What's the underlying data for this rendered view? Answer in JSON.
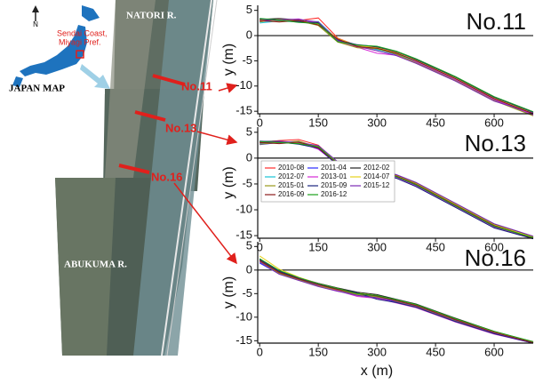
{
  "map": {
    "japan_label": "JAPAN MAP",
    "site_label": [
      "Sendai Coast,",
      "Miyagi Pref."
    ],
    "north": "N",
    "river_top": "NATORI R.",
    "river_bottom": "ABUKUMA R.",
    "lines": [
      "No.11",
      "No.13",
      "No.16"
    ]
  },
  "x_label": "x (m)",
  "chart_data": [
    {
      "type": "line",
      "title": "No.11",
      "y_label": "y (m)",
      "x": [
        0,
        50,
        100,
        150,
        200,
        250,
        300,
        350,
        400,
        500,
        600,
        700
      ],
      "xlim": [
        -5,
        700
      ],
      "ylim": [
        -15.5,
        6
      ],
      "xticks": [
        0,
        150,
        300,
        450,
        600
      ],
      "yticks": [
        5,
        0,
        -5,
        -10,
        -15
      ],
      "series": [
        {
          "color": "#ff2a2a",
          "values": [
            3,
            3.2,
            3,
            3.5,
            -0.5,
            -2,
            -2.5,
            -3.5,
            -5,
            -8.5,
            -12.5,
            -15.5
          ]
        },
        {
          "color": "#2a2aff",
          "values": [
            2.8,
            3,
            2.8,
            2.2,
            -1,
            -2.2,
            -2.7,
            -3.8,
            -5.3,
            -8.8,
            -12.8,
            -15.8
          ]
        },
        {
          "color": "#222222",
          "values": [
            3.2,
            3.4,
            3.1,
            2.6,
            -1.2,
            -2.1,
            -2.3,
            -3.4,
            -4.8,
            -8.3,
            -12.3,
            -15.3
          ]
        },
        {
          "color": "#17c3d6",
          "values": [
            2.5,
            2.9,
            2.7,
            2.8,
            -0.8,
            -1.9,
            -2.8,
            -3.6,
            -5.1,
            -8.6,
            -12.6,
            -15.6
          ]
        },
        {
          "color": "#d62ad6",
          "values": [
            3,
            3.1,
            3.3,
            2.4,
            -1.1,
            -2.3,
            -3.5,
            -3.9,
            -5.2,
            -8.7,
            -12.7,
            -15.7
          ]
        },
        {
          "color": "#e6d21a",
          "values": [
            3.1,
            2.8,
            3,
            2.3,
            -0.6,
            -2,
            -2.4,
            -3.3,
            -4.9,
            -8.4,
            -12.4,
            -15.4
          ]
        },
        {
          "color": "#9a9a1a",
          "values": [
            2.7,
            3.3,
            2.9,
            2,
            -1.3,
            -2.4,
            -2.6,
            -3.7,
            -5.4,
            -8.9,
            -12.9,
            -15.9
          ]
        },
        {
          "color": "#1a237e",
          "values": [
            3.3,
            3,
            2.8,
            2.5,
            -0.9,
            -1.8,
            -2.2,
            -3.2,
            -4.7,
            -8.2,
            -12.2,
            -15.2
          ]
        },
        {
          "color": "#7b2ab3",
          "values": [
            2.9,
            3.2,
            3.2,
            2.7,
            -1,
            -2.1,
            -3,
            -4,
            -5.5,
            -9,
            -13,
            -15.4
          ]
        },
        {
          "color": "#8b1a1a",
          "values": [
            3,
            2.7,
            3,
            2.1,
            -0.7,
            -2.2,
            -2.5,
            -3.5,
            -5,
            -8.5,
            -12.5,
            -15.5
          ]
        },
        {
          "color": "#1aa01a",
          "values": [
            3.4,
            3.1,
            2.6,
            2.4,
            -1.2,
            -1.9,
            -2.1,
            -3.1,
            -4.6,
            -8.1,
            -12.1,
            -15.1
          ]
        }
      ]
    },
    {
      "type": "line",
      "title": "No.13",
      "y_label": "y (m)",
      "x": [
        0,
        50,
        100,
        150,
        200,
        250,
        300,
        350,
        400,
        500,
        600,
        700
      ],
      "xlim": [
        -5,
        700
      ],
      "ylim": [
        -15.5,
        6
      ],
      "xticks": [
        0,
        150,
        300,
        450,
        600
      ],
      "yticks": [
        5,
        0,
        -5,
        -10,
        -15
      ],
      "series": [
        {
          "name": "2010-08",
          "color": "#ff2a2a",
          "values": [
            3,
            3.4,
            3.6,
            2.5,
            -1,
            -2,
            -2.4,
            -3.4,
            -5,
            -9,
            -13,
            -15.4
          ]
        },
        {
          "name": "2011-04",
          "color": "#2a2aff",
          "values": [
            2.6,
            3,
            3,
            1.8,
            -1.3,
            -2.2,
            -2.7,
            -3.7,
            -5.3,
            -9.3,
            -13.3,
            -15.6
          ]
        },
        {
          "name": "2012-02",
          "color": "#222222",
          "values": [
            3.2,
            3.3,
            2.8,
            2.2,
            -0.8,
            -1.8,
            -2.3,
            -3.3,
            -4.8,
            -8.8,
            -12.8,
            -15.2
          ]
        },
        {
          "name": "2012-07",
          "color": "#17c3d6",
          "values": [
            2.8,
            3.1,
            3.2,
            2,
            -1.1,
            -2.1,
            -2.6,
            -3.6,
            -5.1,
            -9.1,
            -13.1,
            -15.5
          ]
        },
        {
          "name": "2013-01",
          "color": "#d62ad6",
          "values": [
            3.1,
            2.9,
            3.1,
            1.7,
            -1.2,
            -2.3,
            -2.8,
            -3.8,
            -5.4,
            -9.4,
            -13.4,
            -15.4
          ]
        },
        {
          "name": "2014-07",
          "color": "#e6d21a",
          "values": [
            3,
            3.2,
            2.9,
            2.3,
            -0.9,
            -1.9,
            -2.4,
            -3.4,
            -4.9,
            -8.9,
            -12.9,
            -15.3
          ]
        },
        {
          "name": "2015-01",
          "color": "#9a9a1a",
          "values": [
            2.7,
            3,
            3.3,
            2.1,
            -1,
            -2,
            -2.5,
            -3.5,
            -5,
            -9,
            -13,
            -15.5
          ]
        },
        {
          "name": "2015-09",
          "color": "#1a237e",
          "values": [
            3.3,
            3.1,
            2.7,
            1.9,
            -1.4,
            -2.4,
            -2.9,
            -3.9,
            -5.5,
            -9.5,
            -13.5,
            -15.6
          ]
        },
        {
          "name": "2015-12",
          "color": "#7b2ab3",
          "values": [
            2.9,
            3.3,
            3,
            2.4,
            -0.7,
            -1.7,
            -2.2,
            -3.2,
            -4.7,
            -8.7,
            -12.7,
            -15.1
          ]
        },
        {
          "name": "2016-09",
          "color": "#8b1a1a",
          "values": [
            3,
            2.8,
            3.1,
            2,
            -1.1,
            -2.1,
            -2.5,
            -3.5,
            -5.1,
            -9.1,
            -13.1,
            -15.5
          ]
        },
        {
          "name": "2016-12",
          "color": "#1aa01a",
          "values": [
            3.2,
            3,
            2.8,
            2.2,
            -1,
            -2,
            -2.6,
            -3.6,
            -5.2,
            -9.2,
            -13.2,
            -15.4
          ]
        }
      ]
    },
    {
      "type": "line",
      "title": "No.16",
      "y_label": "y (m)",
      "x": [
        0,
        50,
        100,
        150,
        200,
        250,
        300,
        350,
        400,
        500,
        600,
        700
      ],
      "xlim": [
        -5,
        700
      ],
      "ylim": [
        -15.5,
        6
      ],
      "xticks": [
        0,
        150,
        300,
        450,
        600
      ],
      "yticks": [
        5,
        0,
        -5,
        -10,
        -15
      ],
      "series": [
        {
          "color": "#ff2a2a",
          "values": [
            2,
            -0.5,
            -1.8,
            -3,
            -4,
            -5,
            -5.5,
            -6.5,
            -7.5,
            -10.5,
            -13.2,
            -15.2
          ]
        },
        {
          "color": "#2a2aff",
          "values": [
            1.5,
            -0.8,
            -2,
            -3.3,
            -4.3,
            -5.3,
            -5.8,
            -6.8,
            -7.8,
            -10.8,
            -13.5,
            -15.5
          ]
        },
        {
          "color": "#222222",
          "values": [
            2.3,
            -0.2,
            -1.6,
            -2.8,
            -3.8,
            -4.7,
            -5.2,
            -6.2,
            -7.2,
            -10.2,
            -13,
            -15.3
          ]
        },
        {
          "color": "#17c3d6",
          "values": [
            1.8,
            -0.6,
            -1.9,
            -3.1,
            -4.1,
            -5.1,
            -5.6,
            -6.6,
            -7.6,
            -10.6,
            -13.3,
            -15.4
          ]
        },
        {
          "color": "#d62ad6",
          "values": [
            2.1,
            -0.4,
            -1.7,
            -3.2,
            -4.4,
            -5.6,
            -6,
            -7,
            -8,
            -11,
            -13.6,
            -15.5
          ]
        },
        {
          "color": "#e6d21a",
          "values": [
            3,
            0.2,
            -1.5,
            -2.9,
            -3.9,
            -4.9,
            -5.4,
            -6.4,
            -7.4,
            -10.4,
            -13.1,
            -15.3
          ]
        },
        {
          "color": "#9a9a1a",
          "values": [
            1.9,
            -0.7,
            -2.1,
            -3.4,
            -4.2,
            -5.2,
            -5.7,
            -6.7,
            -7.7,
            -10.7,
            -13.4,
            -15.4
          ]
        },
        {
          "color": "#1a237e",
          "values": [
            2.2,
            -0.3,
            -1.8,
            -3,
            -4,
            -4.8,
            -6.2,
            -6.9,
            -7.9,
            -10.9,
            -13.5,
            -15.5
          ]
        },
        {
          "color": "#7b2ab3",
          "values": [
            1.7,
            -0.9,
            -2.2,
            -3.5,
            -4.5,
            -5.4,
            -5.9,
            -6.6,
            -7.6,
            -10.6,
            -13.3,
            -15.4
          ]
        },
        {
          "color": "#8b1a1a",
          "values": [
            2,
            -0.5,
            -1.9,
            -3.1,
            -4.1,
            -5,
            -5.5,
            -6.5,
            -7.5,
            -10.5,
            -13.2,
            -15.4
          ]
        },
        {
          "color": "#1aa01a",
          "values": [
            2.4,
            -0.1,
            -1.6,
            -2.9,
            -3.9,
            -5,
            -5.4,
            -6.3,
            -7.3,
            -10.3,
            -13,
            -15.2
          ]
        }
      ]
    }
  ]
}
